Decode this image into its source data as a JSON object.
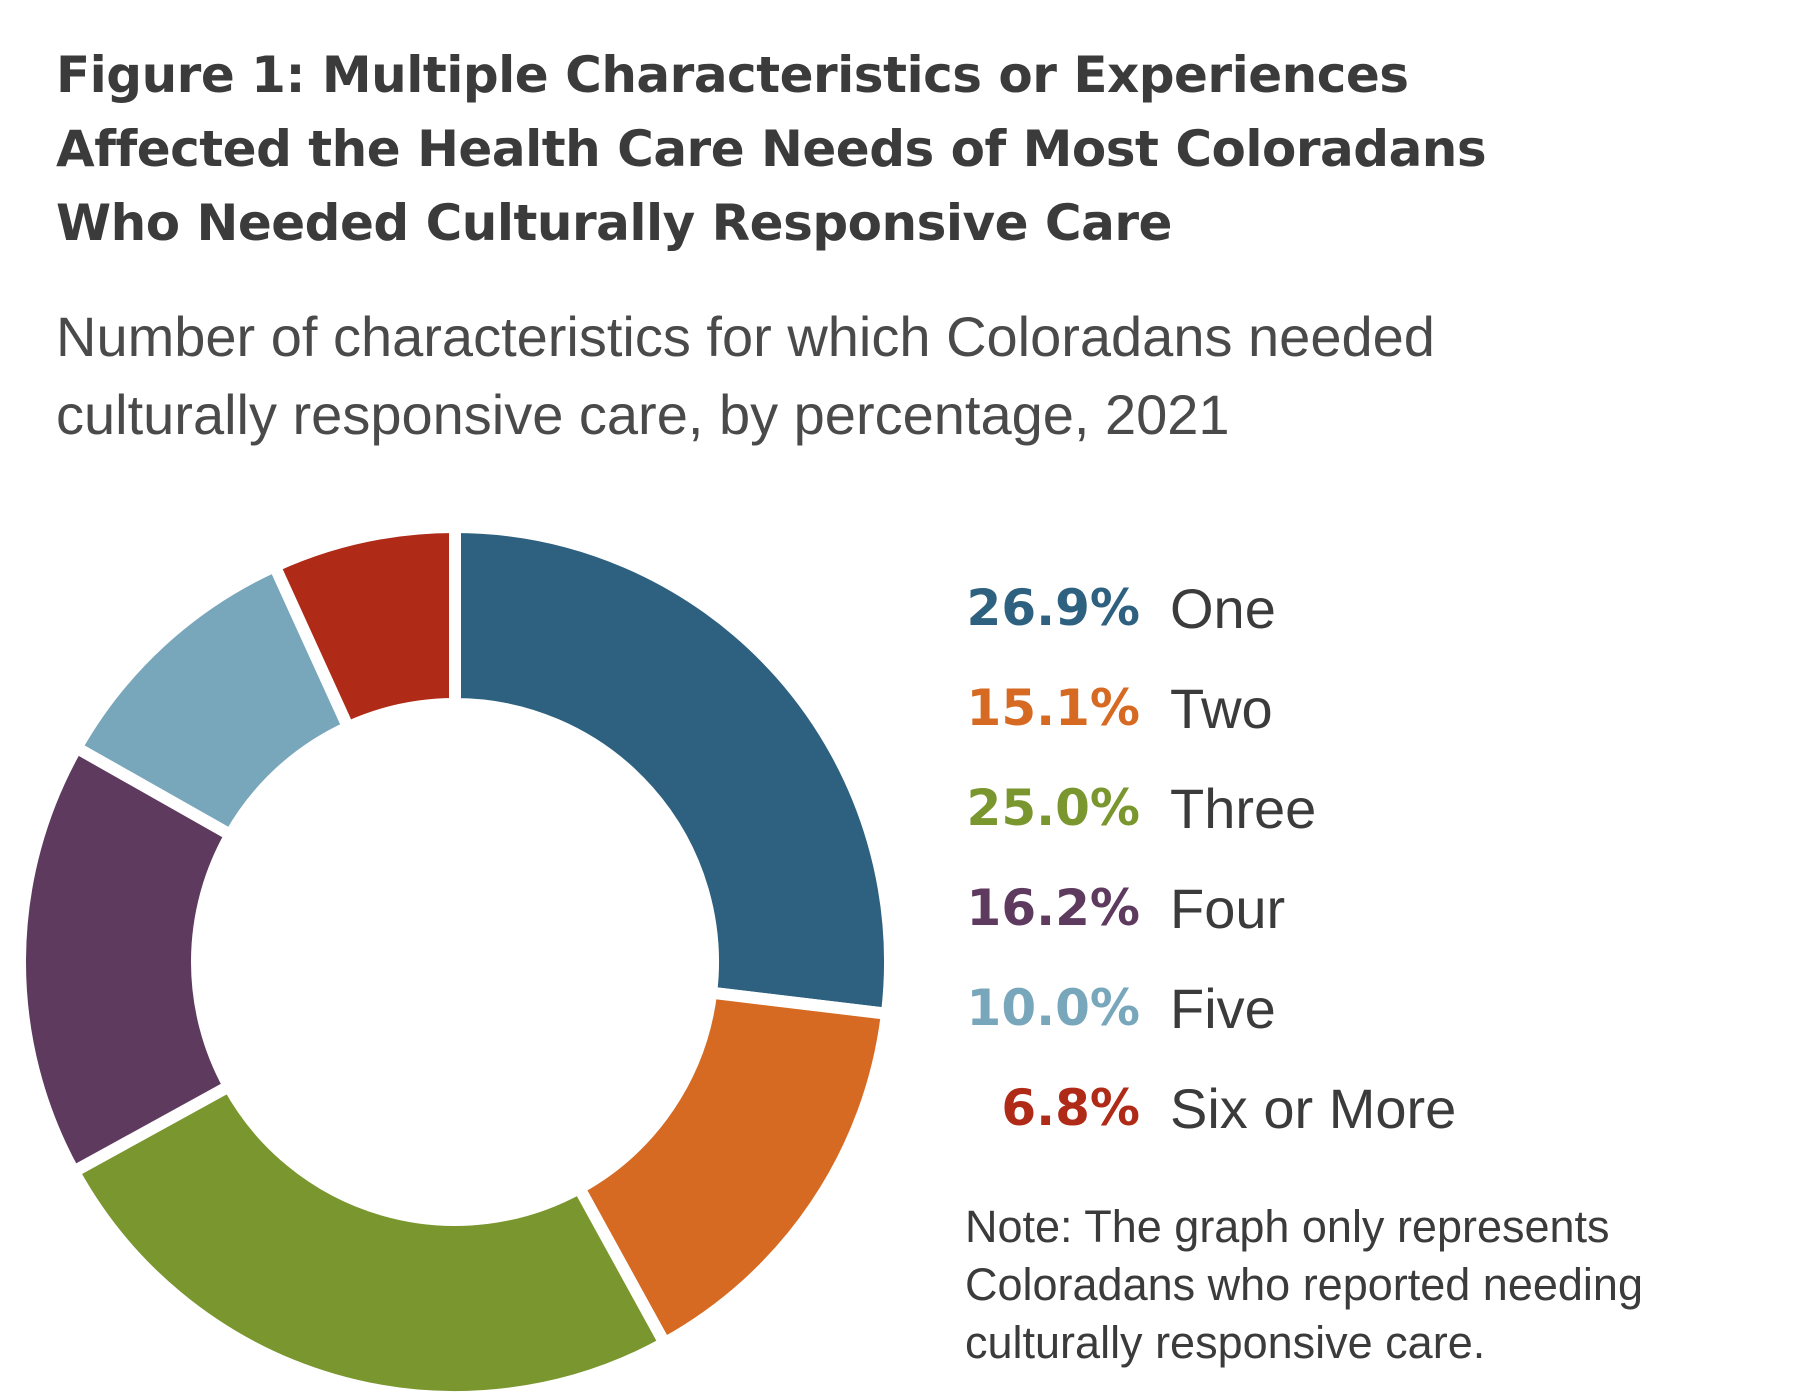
{
  "chart_data": {
    "type": "pie",
    "title_lines": [
      "Figure 1: Multiple Characteristics or Experiences",
      "Affected the Health Care Needs of Most Coloradans",
      "Who Needed Culturally Responsive Care"
    ],
    "subtitle_lines": [
      "Number of characteristics for which Coloradans needed",
      "culturally responsive care, by percentage, 2021"
    ],
    "unit": "%",
    "legend_position": "right",
    "slices": [
      {
        "label": "One",
        "value": 26.9,
        "value_label": "26.9%",
        "color": "#2e6180"
      },
      {
        "label": "Two",
        "value": 15.1,
        "value_label": "15.1%",
        "color": "#d66a23"
      },
      {
        "label": "Three",
        "value": 25.0,
        "value_label": "25.0%",
        "color": "#7a962e"
      },
      {
        "label": "Four",
        "value": 16.2,
        "value_label": "16.2%",
        "color": "#5e3a5e"
      },
      {
        "label": "Five",
        "value": 10.0,
        "value_label": "10.0%",
        "color": "#78a6bb"
      },
      {
        "label": "Six or More",
        "value": 6.8,
        "value_label": "6.8%",
        "color": "#b02b17"
      }
    ],
    "note_lines": [
      "Note: The graph only represents",
      "Coloradans who reported needing",
      "culturally responsive care."
    ]
  }
}
